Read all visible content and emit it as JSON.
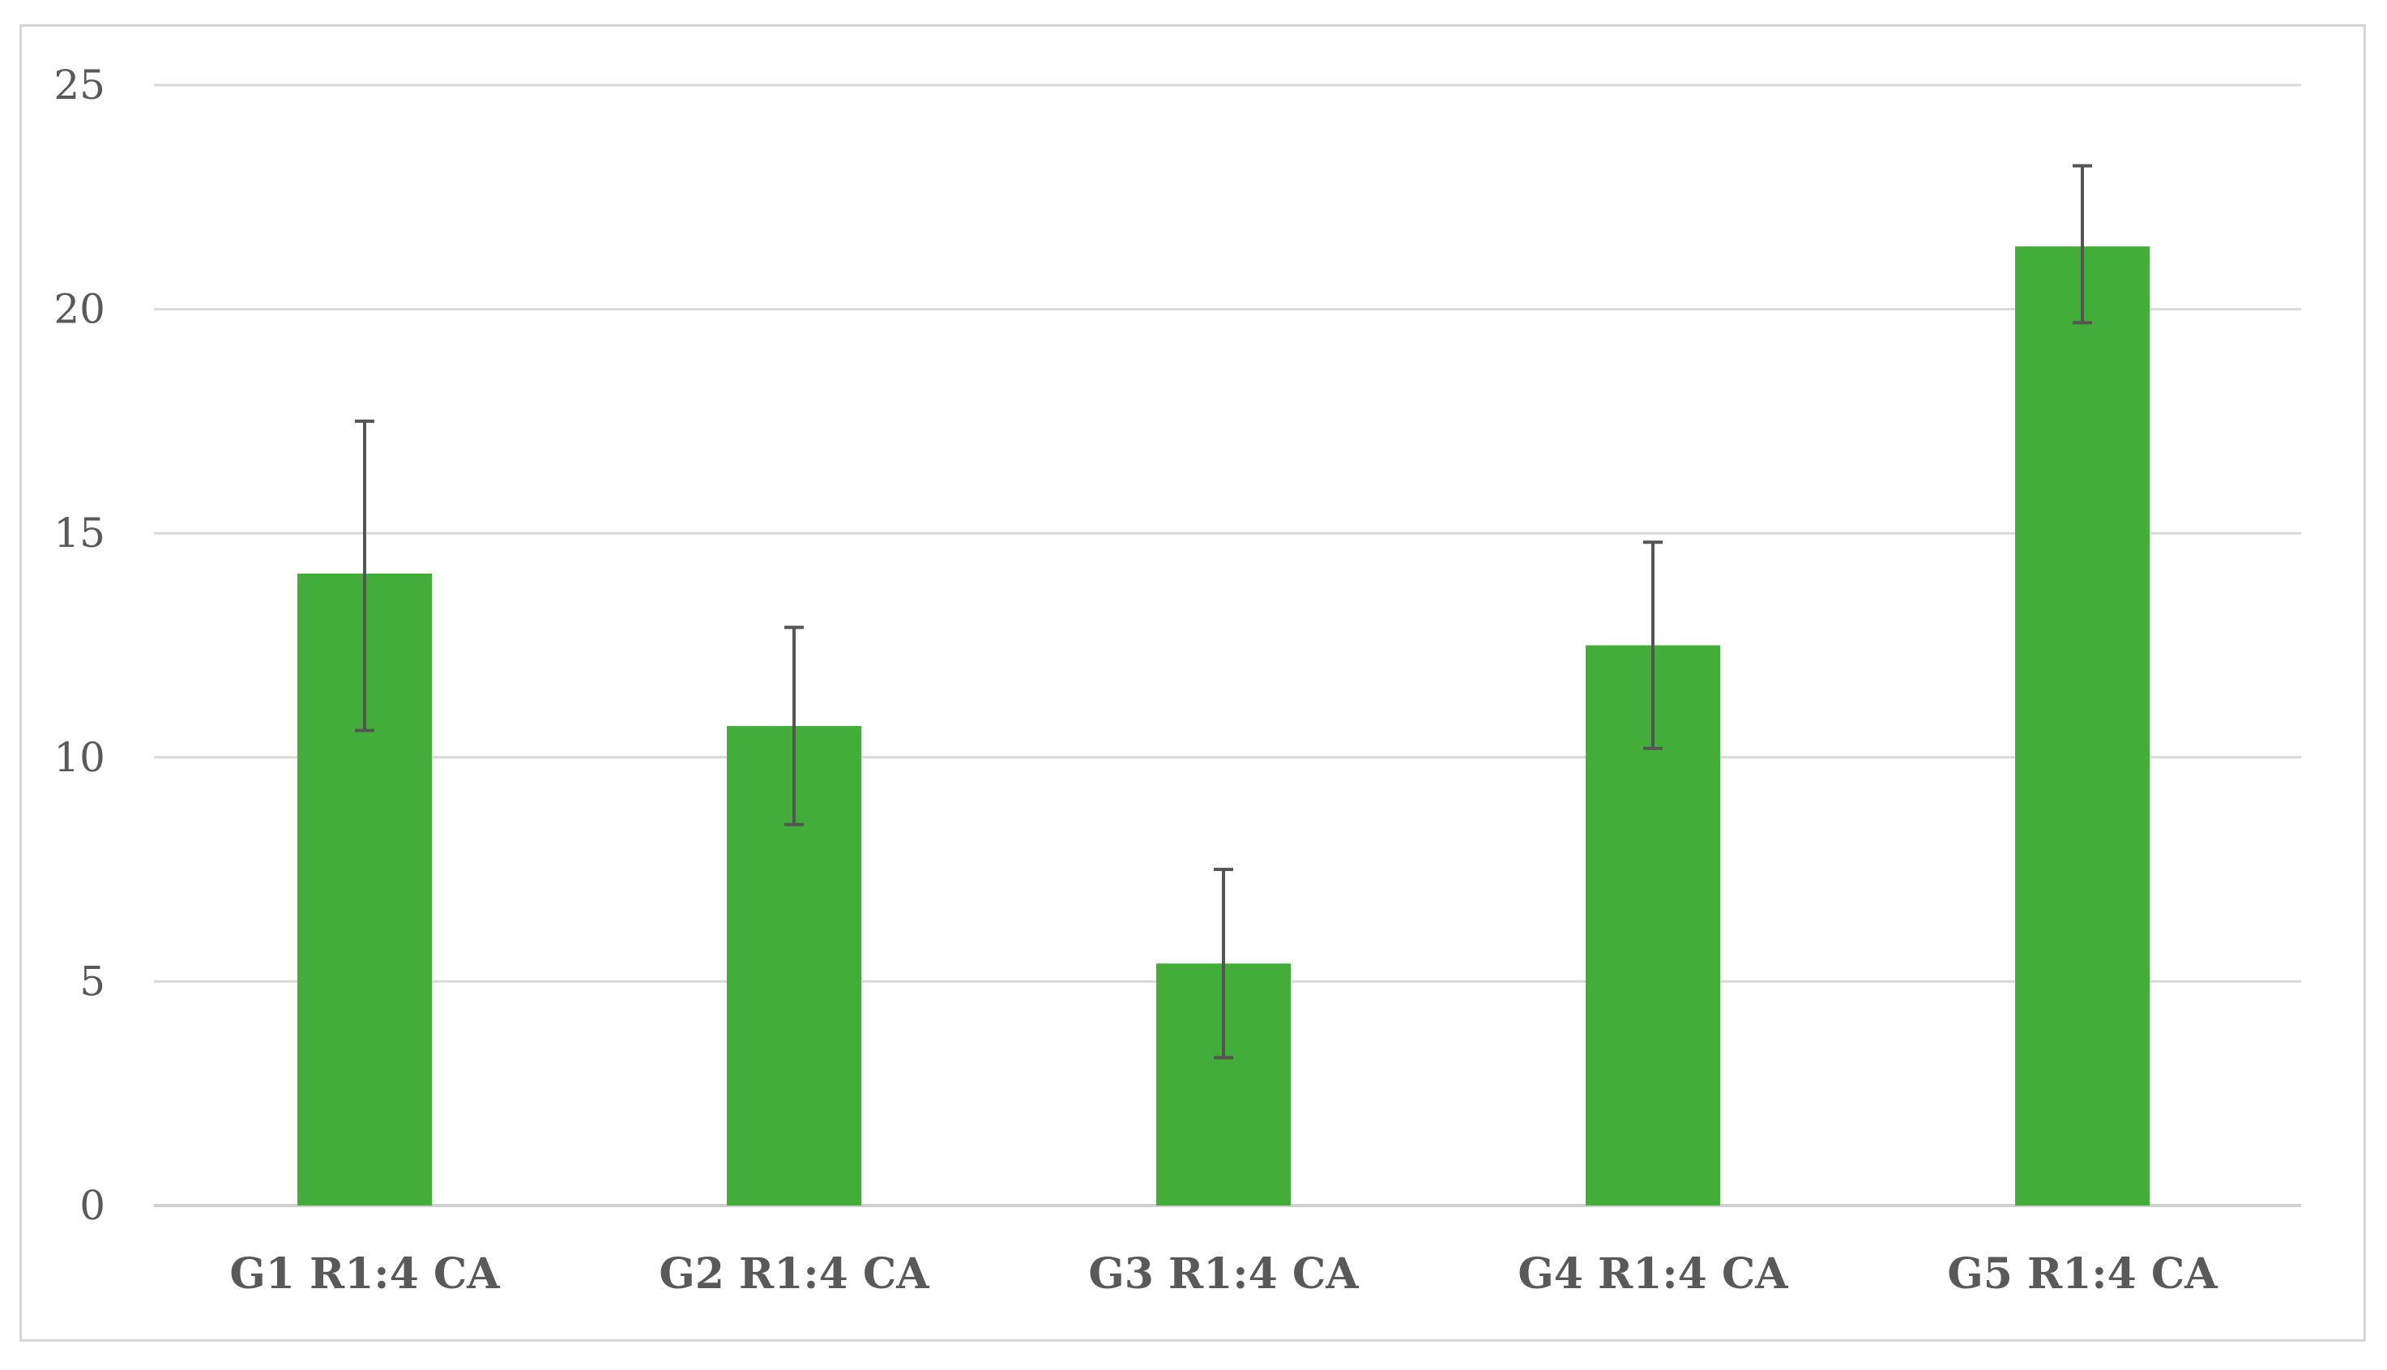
{
  "chart_data": {
    "type": "bar",
    "title": "",
    "xlabel": "",
    "ylabel": "",
    "categories": [
      "G1 R1:4 CA",
      "G2 R1:4 CA",
      "G3 R1:4 CA",
      "G4 R1:4 CA",
      "G5 R1:4 CA"
    ],
    "values": [
      14.1,
      10.7,
      5.4,
      12.5,
      21.4
    ],
    "error_low": [
      10.6,
      8.5,
      3.3,
      10.2,
      19.7
    ],
    "error_high": [
      17.5,
      12.9,
      7.5,
      14.8,
      23.2
    ],
    "ylim": [
      0,
      25
    ],
    "yticks": [
      "0",
      "5",
      "10",
      "15",
      "20",
      "25"
    ],
    "grid": true,
    "legend": "none",
    "colors": {
      "bar": "#43ad3a",
      "error_bar": "#555555",
      "grid": "#d9d9d9",
      "axis": "#d0d0d0"
    }
  }
}
